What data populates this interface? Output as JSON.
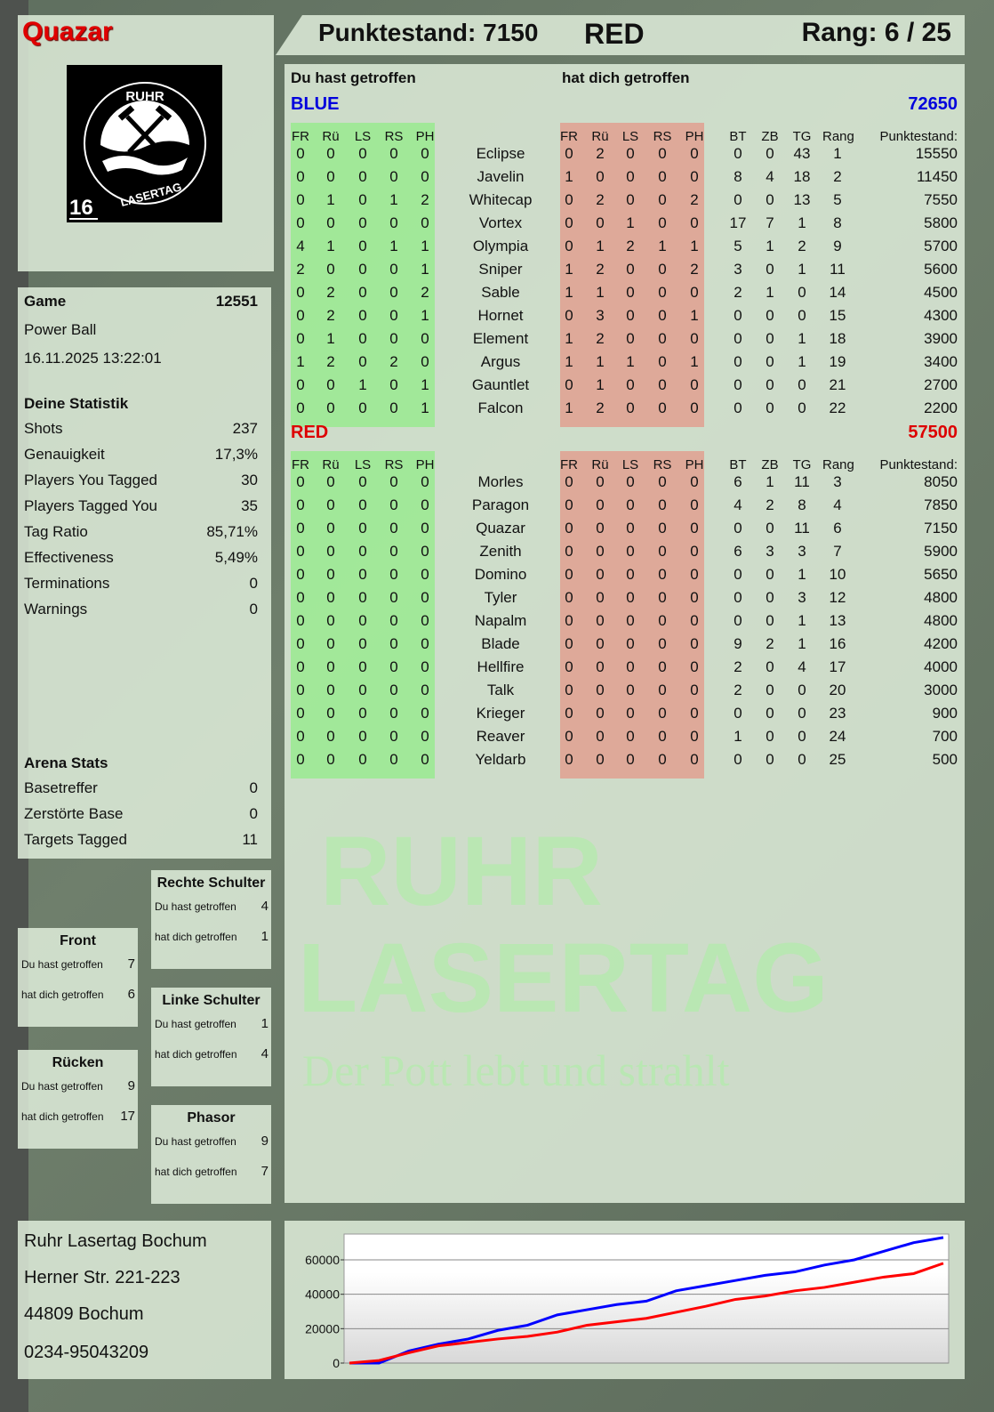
{
  "player": {
    "name": "Quazar",
    "logo_number": "16",
    "logo_text_top": "RUHR",
    "logo_text_bottom": "LASERTAG"
  },
  "header": {
    "score": "Punktestand: 7150",
    "team": "RED",
    "rank": "Rang: 6 / 25"
  },
  "main": {
    "hit_you_label": "Du hast getroffen",
    "hit_by_label": "hat dich getroffen",
    "columns_hit": [
      "FR",
      "Rü",
      "LS",
      "RS",
      "PH"
    ],
    "columns_stats": [
      "BT",
      "ZB",
      "TG",
      "Rang",
      "Punktestand:"
    ],
    "teams": [
      {
        "name": "BLUE",
        "total": "72650",
        "color": "#0000dd",
        "rows": [
          [
            "Eclipse",
            [
              0,
              0,
              0,
              0,
              0
            ],
            [
              0,
              2,
              0,
              0,
              0
            ],
            [
              0,
              0,
              43,
              1
            ],
            15550
          ],
          [
            "Javelin",
            [
              0,
              0,
              0,
              0,
              0
            ],
            [
              1,
              0,
              0,
              0,
              0
            ],
            [
              8,
              4,
              18,
              2
            ],
            11450
          ],
          [
            "Whitecap",
            [
              0,
              1,
              0,
              1,
              2
            ],
            [
              0,
              2,
              0,
              0,
              2
            ],
            [
              0,
              0,
              13,
              5
            ],
            7550
          ],
          [
            "Vortex",
            [
              0,
              0,
              0,
              0,
              0
            ],
            [
              0,
              0,
              1,
              0,
              0
            ],
            [
              17,
              7,
              1,
              8
            ],
            5800
          ],
          [
            "Olympia",
            [
              4,
              1,
              0,
              1,
              1
            ],
            [
              0,
              1,
              2,
              1,
              1
            ],
            [
              5,
              1,
              2,
              9
            ],
            5700
          ],
          [
            "Sniper",
            [
              2,
              0,
              0,
              0,
              1
            ],
            [
              1,
              2,
              0,
              0,
              2
            ],
            [
              3,
              0,
              1,
              11
            ],
            5600
          ],
          [
            "Sable",
            [
              0,
              2,
              0,
              0,
              2
            ],
            [
              1,
              1,
              0,
              0,
              0
            ],
            [
              2,
              1,
              0,
              14
            ],
            4500
          ],
          [
            "Hornet",
            [
              0,
              2,
              0,
              0,
              1
            ],
            [
              0,
              3,
              0,
              0,
              1
            ],
            [
              0,
              0,
              0,
              15
            ],
            4300
          ],
          [
            "Element",
            [
              0,
              1,
              0,
              0,
              0
            ],
            [
              1,
              2,
              0,
              0,
              0
            ],
            [
              0,
              0,
              1,
              18
            ],
            3900
          ],
          [
            "Argus",
            [
              1,
              2,
              0,
              2,
              0
            ],
            [
              1,
              1,
              1,
              0,
              1
            ],
            [
              0,
              0,
              1,
              19
            ],
            3400
          ],
          [
            "Gauntlet",
            [
              0,
              0,
              1,
              0,
              1
            ],
            [
              0,
              1,
              0,
              0,
              0
            ],
            [
              0,
              0,
              0,
              21
            ],
            2700
          ],
          [
            "Falcon",
            [
              0,
              0,
              0,
              0,
              1
            ],
            [
              1,
              2,
              0,
              0,
              0
            ],
            [
              0,
              0,
              0,
              22
            ],
            2200
          ]
        ]
      },
      {
        "name": "RED",
        "total": "57500",
        "color": "#dd0000",
        "rows": [
          [
            "Morles",
            [
              0,
              0,
              0,
              0,
              0
            ],
            [
              0,
              0,
              0,
              0,
              0
            ],
            [
              6,
              1,
              11,
              3
            ],
            8050
          ],
          [
            "Paragon",
            [
              0,
              0,
              0,
              0,
              0
            ],
            [
              0,
              0,
              0,
              0,
              0
            ],
            [
              4,
              2,
              8,
              4
            ],
            7850
          ],
          [
            "Quazar",
            [
              0,
              0,
              0,
              0,
              0
            ],
            [
              0,
              0,
              0,
              0,
              0
            ],
            [
              0,
              0,
              11,
              6
            ],
            7150
          ],
          [
            "Zenith",
            [
              0,
              0,
              0,
              0,
              0
            ],
            [
              0,
              0,
              0,
              0,
              0
            ],
            [
              6,
              3,
              3,
              7
            ],
            5900
          ],
          [
            "Domino",
            [
              0,
              0,
              0,
              0,
              0
            ],
            [
              0,
              0,
              0,
              0,
              0
            ],
            [
              0,
              0,
              1,
              10
            ],
            5650
          ],
          [
            "Tyler",
            [
              0,
              0,
              0,
              0,
              0
            ],
            [
              0,
              0,
              0,
              0,
              0
            ],
            [
              0,
              0,
              3,
              12
            ],
            4800
          ],
          [
            "Napalm",
            [
              0,
              0,
              0,
              0,
              0
            ],
            [
              0,
              0,
              0,
              0,
              0
            ],
            [
              0,
              0,
              1,
              13
            ],
            4800
          ],
          [
            "Blade",
            [
              0,
              0,
              0,
              0,
              0
            ],
            [
              0,
              0,
              0,
              0,
              0
            ],
            [
              9,
              2,
              1,
              16
            ],
            4200
          ],
          [
            "Hellfire",
            [
              0,
              0,
              0,
              0,
              0
            ],
            [
              0,
              0,
              0,
              0,
              0
            ],
            [
              2,
              0,
              4,
              17
            ],
            4000
          ],
          [
            "Talk",
            [
              0,
              0,
              0,
              0,
              0
            ],
            [
              0,
              0,
              0,
              0,
              0
            ],
            [
              2,
              0,
              0,
              20
            ],
            3000
          ],
          [
            "Krieger",
            [
              0,
              0,
              0,
              0,
              0
            ],
            [
              0,
              0,
              0,
              0,
              0
            ],
            [
              0,
              0,
              0,
              23
            ],
            900
          ],
          [
            "Reaver",
            [
              0,
              0,
              0,
              0,
              0
            ],
            [
              0,
              0,
              0,
              0,
              0
            ],
            [
              1,
              0,
              0,
              24
            ],
            700
          ],
          [
            "Yeldarb",
            [
              0,
              0,
              0,
              0,
              0
            ],
            [
              0,
              0,
              0,
              0,
              0
            ],
            [
              0,
              0,
              0,
              25
            ],
            500
          ]
        ]
      }
    ]
  },
  "game": {
    "label": "Game",
    "id": "12551",
    "mode": "Power Ball",
    "datetime": "16.11.2025 13:22:01",
    "stats_title": "Deine Statistik",
    "stats": [
      [
        "Shots",
        "237"
      ],
      [
        "Genauigkeit",
        "17,3%"
      ],
      [
        "Players You Tagged",
        "30"
      ],
      [
        "Players Tagged You",
        "35"
      ],
      [
        "Tag Ratio",
        "85,71%"
      ],
      [
        "Effectiveness",
        "5,49%"
      ],
      [
        "Terminations",
        "0"
      ],
      [
        "Warnings",
        "0"
      ]
    ],
    "arena_title": "Arena Stats",
    "arena": [
      [
        "Basetreffer",
        "0"
      ],
      [
        "Zerstörte Base",
        "0"
      ],
      [
        "Targets Tagged",
        "11"
      ]
    ]
  },
  "zones": [
    {
      "name": "Rechte Schulter",
      "hit": "4",
      "got": "1"
    },
    {
      "name": "Front",
      "hit": "7",
      "got": "6"
    },
    {
      "name": "Linke Schulter",
      "hit": "1",
      "got": "4"
    },
    {
      "name": "Rücken",
      "hit": "9",
      "got": "17"
    },
    {
      "name": "Phasor",
      "hit": "9",
      "got": "7"
    }
  ],
  "zone_labels": {
    "hit": "Du hast getroffen",
    "got": "hat dich getroffen"
  },
  "address": [
    "Ruhr Lasertag Bochum",
    "Herner Str. 221-223",
    "44809 Bochum",
    "0234-95043209"
  ],
  "watermark": {
    "line1": "RUHR",
    "line2": "LASERTAG",
    "slogan": "Der Pott lebt und strahlt"
  },
  "chart_data": {
    "type": "line",
    "ylim": [
      0,
      75000
    ],
    "yticks": [
      "0",
      "20000",
      "40000",
      "60000"
    ],
    "grid": true,
    "x": [
      0,
      1,
      2,
      3,
      4,
      5,
      6,
      7,
      8,
      9,
      10,
      11,
      12,
      13,
      14,
      15,
      16,
      17,
      18,
      19,
      20
    ],
    "series": [
      {
        "color": "#0000ff",
        "values": [
          0,
          0,
          7000,
          11000,
          14000,
          19000,
          22000,
          28000,
          31000,
          34000,
          36000,
          42000,
          45000,
          48000,
          51000,
          53000,
          57000,
          60000,
          65000,
          70000,
          73000
        ]
      },
      {
        "color": "#ff0000",
        "values": [
          0,
          1500,
          6000,
          10000,
          12000,
          14000,
          15500,
          18000,
          22000,
          24000,
          26000,
          29500,
          33000,
          37000,
          39000,
          42000,
          44000,
          47000,
          50000,
          52000,
          58000
        ]
      }
    ]
  }
}
